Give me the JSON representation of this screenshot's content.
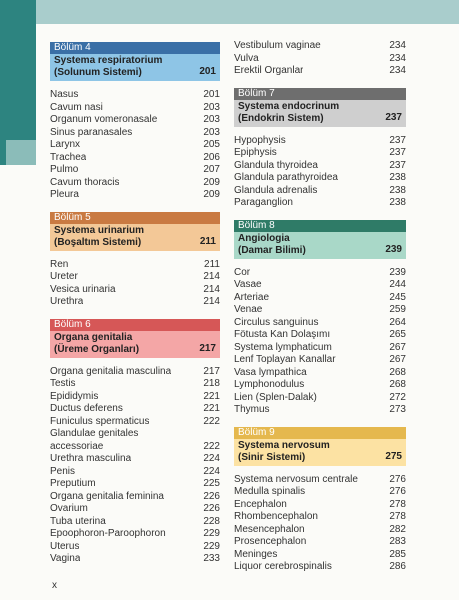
{
  "colors": {
    "band": "#a9cdcc",
    "sidebar": "#2d8480",
    "bolum4_head": "#3a6fa6",
    "bolum4_body": "#8ec5e6",
    "bolum5_head": "#c97a42",
    "bolum5_body": "#f3c897",
    "bolum6_head": "#d65757",
    "bolum6_body": "#f4a6a6",
    "bolum7_head": "#6e6e6e",
    "bolum7_body": "#cfcfcf",
    "bolum8_head": "#2f7b67",
    "bolum8_body": "#a9d8c8",
    "bolum9_head": "#e5b84e",
    "bolum9_body": "#fce2a3"
  },
  "left": {
    "ch4": {
      "label": "Bölüm 4",
      "title1": "Systema respiratorium",
      "title2": "(Solunum Sistemi)",
      "page": "201"
    },
    "ch4_items": [
      {
        "t": "Nasus",
        "p": "201"
      },
      {
        "t": "Cavum nasi",
        "p": "203"
      },
      {
        "t": "Organum vomeronasale",
        "p": "203"
      },
      {
        "t": "Sinus paranasales",
        "p": "203"
      },
      {
        "t": "Larynx",
        "p": "205"
      },
      {
        "t": "Trachea",
        "p": "206"
      },
      {
        "t": "Pulmo",
        "p": "207"
      },
      {
        "t": "Cavum thoracis",
        "p": "209"
      },
      {
        "t": "Pleura",
        "p": "209"
      }
    ],
    "ch5": {
      "label": "Bölüm 5",
      "title1": "Systema urinarium",
      "title2": "(Boşaltım Sistemi)",
      "page": "211"
    },
    "ch5_items": [
      {
        "t": "Ren",
        "p": "211"
      },
      {
        "t": "Ureter",
        "p": "214"
      },
      {
        "t": "Vesica urinaria",
        "p": "214"
      },
      {
        "t": "Urethra",
        "p": "214"
      }
    ],
    "ch6": {
      "label": "Bölüm 6",
      "title1": "Organa genitalia",
      "title2": "(Üreme Organları)",
      "page": "217"
    },
    "ch6_items": [
      {
        "t": "Organa genitalia masculina",
        "p": "217"
      },
      {
        "t": "Testis",
        "p": "218"
      },
      {
        "t": "Epididymis",
        "p": "221"
      },
      {
        "t": "Ductus deferens",
        "p": "221"
      },
      {
        "t": "Funiculus spermaticus",
        "p": "222"
      },
      {
        "t": "Glandulae genitales",
        "p": ""
      },
      {
        "t": "accessoriae",
        "p": "222"
      },
      {
        "t": "Urethra masculina",
        "p": "224"
      },
      {
        "t": "Penis",
        "p": "224"
      },
      {
        "t": "Preputium",
        "p": "225"
      },
      {
        "t": "Organa genitalia feminina",
        "p": "226"
      },
      {
        "t": "Ovarium",
        "p": "226"
      },
      {
        "t": "Tuba uterina",
        "p": "228"
      },
      {
        "t": "Epoophoron-Paroophoron",
        "p": "229"
      },
      {
        "t": "Uterus",
        "p": "229"
      },
      {
        "t": "Vagina",
        "p": "233"
      }
    ]
  },
  "right": {
    "top_items": [
      {
        "t": "Vestibulum vaginae",
        "p": "234"
      },
      {
        "t": "Vulva",
        "p": "234"
      },
      {
        "t": "Erektil Organlar",
        "p": "234"
      }
    ],
    "ch7": {
      "label": "Bölüm 7",
      "title1": "Systema endocrinum",
      "title2": "(Endokrin Sistem)",
      "page": "237"
    },
    "ch7_items": [
      {
        "t": "Hypophysis",
        "p": "237"
      },
      {
        "t": "Epiphysis",
        "p": "237"
      },
      {
        "t": "Glandula thyroidea",
        "p": "237"
      },
      {
        "t": "Glandula parathyroidea",
        "p": "238"
      },
      {
        "t": "Glandula adrenalis",
        "p": "238"
      },
      {
        "t": "Paraganglion",
        "p": "238"
      }
    ],
    "ch8": {
      "label": "Bölüm 8",
      "title1": "Angiologia",
      "title2": "(Damar Bilimi)",
      "page": "239"
    },
    "ch8_items": [
      {
        "t": "Cor",
        "p": "239"
      },
      {
        "t": "Vasae",
        "p": "244"
      },
      {
        "t": "Arteriae",
        "p": "245"
      },
      {
        "t": "Venae",
        "p": "259"
      },
      {
        "t": "Circulus sanguinus",
        "p": "264"
      },
      {
        "t": "Fötusta Kan Dolaşımı",
        "p": "265"
      },
      {
        "t": "Systema lymphaticum",
        "p": "267"
      },
      {
        "t": "Lenf Toplayan Kanallar",
        "p": "267"
      },
      {
        "t": "Vasa lympathica",
        "p": "268"
      },
      {
        "t": "Lymphonodulus",
        "p": "268"
      },
      {
        "t": "Lien (Splen-Dalak)",
        "p": "272"
      },
      {
        "t": "Thymus",
        "p": "273"
      }
    ],
    "ch9": {
      "label": "Bölüm 9",
      "title1": "Systema nervosum",
      "title2": "(Sinir Sistemi)",
      "page": "275"
    },
    "ch9_items": [
      {
        "t": "Systema nervosum centrale",
        "p": "276"
      },
      {
        "t": "Medulla spinalis",
        "p": "276"
      },
      {
        "t": "Encephalon",
        "p": "278"
      },
      {
        "t": "Rhombencephalon",
        "p": "278"
      },
      {
        "t": "Mesencephalon",
        "p": "282"
      },
      {
        "t": "Prosencephalon",
        "p": "283"
      },
      {
        "t": "Meninges",
        "p": "285"
      },
      {
        "t": "Liquor cerebrospinalis",
        "p": "286"
      }
    ]
  },
  "footer": {
    "page_number": "x"
  }
}
